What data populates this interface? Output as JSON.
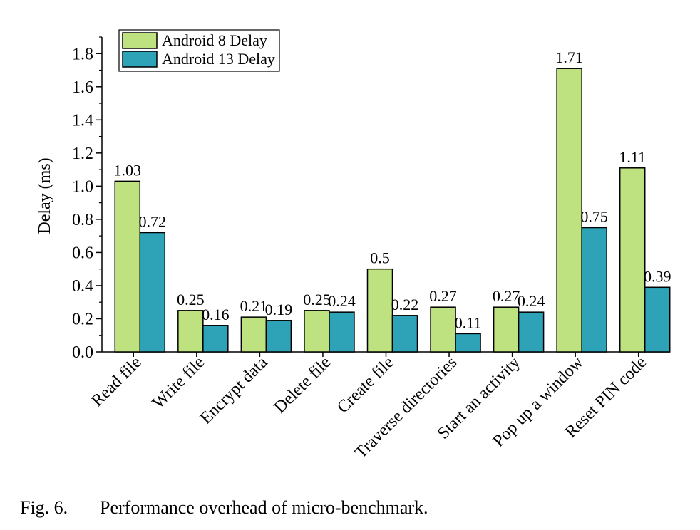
{
  "chart_data": {
    "type": "bar",
    "title": "",
    "xlabel": "",
    "ylabel": "Delay (ms)",
    "ylim": [
      0,
      1.9
    ],
    "yticks": [
      "0.0",
      "0.2",
      "0.4",
      "0.6",
      "0.8",
      "1.0",
      "1.2",
      "1.4",
      "1.6",
      "1.8"
    ],
    "categories": [
      "Read file",
      "Write file",
      "Encrypt data",
      "Delete file",
      "Create file",
      "Traverse directories",
      "Start an activity",
      "Pop up a window",
      "Reset PIN code"
    ],
    "series": [
      {
        "name": "Android 8 Delay",
        "color": "#bde27f",
        "values": [
          1.03,
          0.25,
          0.21,
          0.25,
          0.5,
          0.27,
          0.27,
          1.71,
          1.11
        ],
        "labels": [
          "1.03",
          "0.25",
          "0.21",
          "0.25",
          "0.5",
          "0.27",
          "0.27",
          "1.71",
          "1.11"
        ]
      },
      {
        "name": "Android 13 Delay",
        "color": "#2ea2b6",
        "values": [
          0.72,
          0.16,
          0.19,
          0.24,
          0.22,
          0.11,
          0.24,
          0.75,
          0.39
        ],
        "labels": [
          "0.72",
          "0.16",
          "0.19",
          "0.24",
          "0.22",
          "0.11",
          "0.24",
          "0.75",
          "0.39"
        ]
      }
    ],
    "grid": false,
    "legend_position": "top-left"
  },
  "caption": {
    "label": "Fig. 6.",
    "text": "Performance overhead of micro-benchmark."
  }
}
